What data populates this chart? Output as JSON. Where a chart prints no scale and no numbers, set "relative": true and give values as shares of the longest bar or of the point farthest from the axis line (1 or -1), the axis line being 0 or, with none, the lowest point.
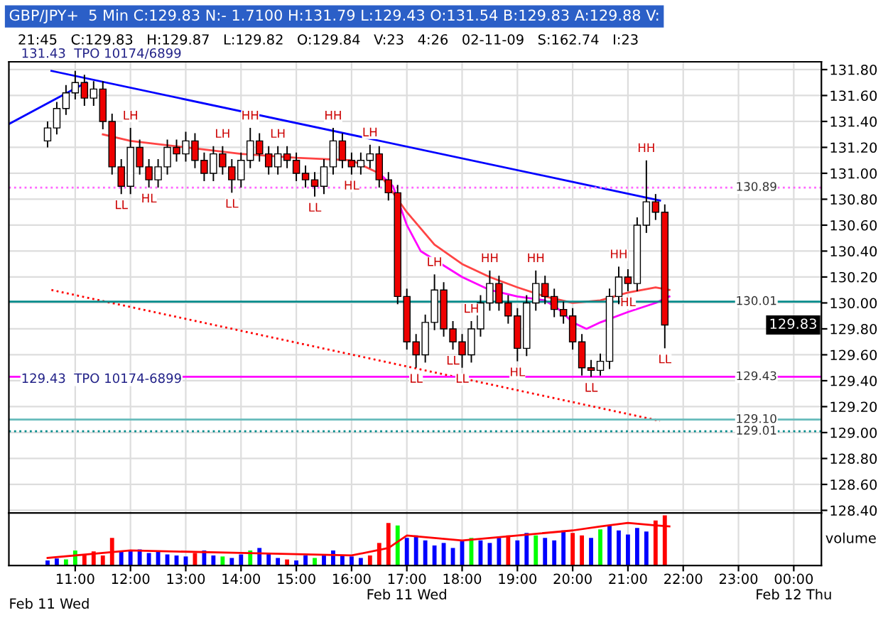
{
  "chart_data": [
    {
      "type": "candlestick",
      "title": "GBP/JPY+  5 Min C:129.83 N:- 1.7100 H:131.79 L:129.43 O:131.54 B:129.83 A:129.88 V:",
      "subtitle": "21:45   C:129.83   H:129.87   L:129.82   O:129.84   V:23   4:26   02-11-09   S:162.74   I:23",
      "x": [
        10.5,
        10.6667,
        10.8333,
        11.0,
        11.1667,
        11.3333,
        11.5,
        11.6667,
        11.8333,
        12.0,
        12.1667,
        12.3333,
        12.5,
        12.6667,
        12.8333,
        13.0,
        13.1667,
        13.3333,
        13.5,
        13.6667,
        13.8333,
        14.0,
        14.1667,
        14.3333,
        14.5,
        14.6667,
        14.8333,
        15.0,
        15.1667,
        15.3333,
        15.5,
        15.6667,
        15.8333,
        16.0,
        16.1667,
        16.3333,
        16.5,
        16.6667,
        16.8333,
        17.0,
        17.1667,
        17.3333,
        17.5,
        17.6667,
        17.8333,
        18.0,
        18.1667,
        18.3333,
        18.5,
        18.6667,
        18.8333,
        19.0,
        19.1667,
        19.3333,
        19.5,
        19.6667,
        19.8333,
        20.0,
        20.1667,
        20.3333,
        20.5,
        20.6667,
        20.8333,
        21.0,
        21.1667,
        21.3333,
        21.5,
        21.6667
      ],
      "ohlc": [
        [
          131.25,
          131.4,
          131.2,
          131.35
        ],
        [
          131.35,
          131.55,
          131.3,
          131.5
        ],
        [
          131.5,
          131.68,
          131.45,
          131.62
        ],
        [
          131.62,
          131.79,
          131.57,
          131.7
        ],
        [
          131.7,
          131.76,
          131.52,
          131.58
        ],
        [
          131.58,
          131.71,
          131.52,
          131.65
        ],
        [
          131.65,
          131.71,
          131.34,
          131.4
        ],
        [
          131.4,
          131.46,
          130.99,
          131.05
        ],
        [
          131.05,
          131.11,
          130.84,
          130.9
        ],
        [
          130.9,
          131.35,
          130.84,
          131.2
        ],
        [
          131.2,
          131.26,
          130.99,
          131.05
        ],
        [
          131.05,
          131.11,
          130.89,
          130.95
        ],
        [
          130.95,
          131.11,
          130.89,
          131.05
        ],
        [
          131.05,
          131.26,
          130.99,
          131.2
        ],
        [
          131.2,
          131.26,
          131.09,
          131.15
        ],
        [
          131.15,
          131.32,
          131.09,
          131.25
        ],
        [
          131.25,
          131.31,
          131.04,
          131.1
        ],
        [
          131.1,
          131.16,
          130.94,
          131.0
        ],
        [
          131.0,
          131.21,
          130.94,
          131.15
        ],
        [
          131.15,
          131.21,
          130.99,
          131.05
        ],
        [
          131.05,
          131.11,
          130.85,
          130.95
        ],
        [
          130.95,
          131.16,
          130.89,
          131.1
        ],
        [
          131.1,
          131.35,
          131.04,
          131.25
        ],
        [
          131.25,
          131.31,
          131.09,
          131.15
        ],
        [
          131.15,
          131.21,
          130.99,
          131.05
        ],
        [
          131.05,
          131.21,
          130.99,
          131.15
        ],
        [
          131.15,
          131.21,
          131.04,
          131.1
        ],
        [
          131.1,
          131.16,
          130.94,
          131.0
        ],
        [
          131.0,
          131.06,
          130.89,
          130.95
        ],
        [
          130.95,
          131.01,
          130.82,
          130.9
        ],
        [
          130.9,
          131.11,
          130.84,
          131.05
        ],
        [
          131.05,
          131.35,
          130.99,
          131.25
        ],
        [
          131.25,
          131.31,
          131.04,
          131.1
        ],
        [
          131.1,
          131.16,
          130.99,
          131.05
        ],
        [
          131.05,
          131.16,
          130.99,
          131.1
        ],
        [
          131.1,
          131.22,
          131.04,
          131.15
        ],
        [
          131.15,
          131.21,
          130.89,
          130.95
        ],
        [
          130.95,
          131.01,
          130.79,
          130.85
        ],
        [
          130.85,
          130.91,
          129.99,
          130.05
        ],
        [
          130.05,
          130.11,
          129.64,
          129.7
        ],
        [
          129.7,
          129.76,
          129.5,
          129.6
        ],
        [
          129.6,
          129.91,
          129.54,
          129.85
        ],
        [
          129.85,
          130.22,
          129.79,
          130.1
        ],
        [
          130.1,
          130.16,
          129.74,
          129.8
        ],
        [
          129.8,
          129.86,
          129.64,
          129.7
        ],
        [
          129.7,
          129.76,
          129.5,
          129.6
        ],
        [
          129.6,
          129.86,
          129.54,
          129.8
        ],
        [
          129.8,
          130.06,
          129.74,
          130.0
        ],
        [
          130.0,
          130.25,
          129.94,
          130.15
        ],
        [
          130.15,
          130.21,
          129.94,
          130.0
        ],
        [
          130.0,
          130.06,
          129.84,
          129.9
        ],
        [
          129.9,
          129.96,
          129.55,
          129.65
        ],
        [
          129.65,
          130.06,
          129.59,
          130.0
        ],
        [
          130.0,
          130.25,
          129.94,
          130.15
        ],
        [
          130.15,
          130.21,
          129.99,
          130.05
        ],
        [
          130.05,
          130.11,
          129.89,
          129.95
        ],
        [
          129.95,
          130.01,
          129.84,
          129.9
        ],
        [
          129.9,
          129.96,
          129.64,
          129.7
        ],
        [
          129.7,
          129.76,
          129.44,
          129.5
        ],
        [
          129.5,
          129.56,
          129.43,
          129.48
        ],
        [
          129.48,
          129.61,
          129.44,
          129.55
        ],
        [
          129.55,
          130.11,
          129.49,
          130.05
        ],
        [
          130.05,
          130.28,
          129.99,
          130.2
        ],
        [
          130.2,
          130.26,
          130.09,
          130.15
        ],
        [
          130.15,
          130.66,
          130.09,
          130.6
        ],
        [
          130.6,
          131.1,
          130.54,
          130.78
        ],
        [
          130.78,
          130.84,
          130.64,
          130.7
        ],
        [
          130.7,
          130.76,
          129.65,
          129.83
        ]
      ],
      "series": [
        {
          "type": "line",
          "color": "#0000ff",
          "x": [
            9.8,
            11.2
          ],
          "values": [
            131.38,
            131.7
          ]
        },
        {
          "type": "line",
          "color": "#0000ff",
          "x": [
            10.57,
            21.58
          ],
          "values": [
            131.79,
            130.79
          ]
        },
        {
          "type": "line",
          "color": "#ff0000",
          "line_style": "dotted",
          "x": [
            10.57,
            21.58
          ],
          "values": [
            130.1,
            129.09
          ]
        },
        {
          "type": "line",
          "color": "#ff4444",
          "x": [
            11.5,
            12,
            13,
            14,
            15,
            16,
            16.5,
            17,
            17.5,
            18,
            18.5,
            19,
            19.5,
            20,
            20.5,
            21,
            21.5,
            21.75
          ],
          "values": [
            131.3,
            131.25,
            131.2,
            131.15,
            131.12,
            131.1,
            131.0,
            130.7,
            130.45,
            130.3,
            130.2,
            130.12,
            130.05,
            130.0,
            130.02,
            130.08,
            130.12,
            130.1
          ]
        },
        {
          "type": "line",
          "color": "#ff00ff",
          "x": [
            16.5,
            16.75,
            17,
            17.25,
            18,
            18.5,
            19,
            19.5,
            19.75,
            20,
            20.25,
            20.5,
            21,
            21.5,
            21.75
          ],
          "values": [
            131.0,
            130.9,
            130.6,
            130.4,
            130.2,
            130.1,
            130.05,
            130.02,
            129.95,
            129.85,
            129.8,
            129.85,
            129.93,
            130.0,
            130.05
          ]
        }
      ],
      "ref_lines": [
        {
          "axis": "y",
          "value": 130.89,
          "label": "130.89",
          "color": "#ff66ff",
          "line_style": "dotted"
        },
        {
          "axis": "y",
          "value": 129.43,
          "label": "129.43",
          "color": "#ff00ff",
          "line_style": "solid"
        },
        {
          "axis": "y",
          "value": 130.01,
          "label": "130.01",
          "color": "#008b8b",
          "line_style": "solid"
        },
        {
          "axis": "y",
          "value": 129.1,
          "label": "129.10",
          "color": "#66bbbb",
          "line_style": "solid"
        },
        {
          "axis": "y",
          "value": 129.01,
          "label": "129.01",
          "color": "#008b8b",
          "line_style": "dotted"
        }
      ],
      "annotations": [
        {
          "text": "LL",
          "x": 11.8333,
          "y": 130.84
        },
        {
          "text": "LH",
          "x": 12.0,
          "y": 131.35
        },
        {
          "text": "HL",
          "x": 12.3333,
          "y": 130.89
        },
        {
          "text": "LH",
          "x": 13.6667,
          "y": 131.21
        },
        {
          "text": "LL",
          "x": 13.8333,
          "y": 130.85
        },
        {
          "text": "HH",
          "x": 14.1667,
          "y": 131.35
        },
        {
          "text": "LH",
          "x": 14.6667,
          "y": 131.21
        },
        {
          "text": "LL",
          "x": 15.3333,
          "y": 130.82
        },
        {
          "text": "HH",
          "x": 15.6667,
          "y": 131.35
        },
        {
          "text": "HL",
          "x": 16.0,
          "y": 130.99
        },
        {
          "text": "LH",
          "x": 16.3333,
          "y": 131.22
        },
        {
          "text": "LL",
          "x": 17.1667,
          "y": 129.5
        },
        {
          "text": "LH",
          "x": 17.5,
          "y": 130.22
        },
        {
          "text": "LL",
          "x": 17.8333,
          "y": 129.64
        },
        {
          "text": "LL",
          "x": 18.0,
          "y": 129.5
        },
        {
          "text": "LH",
          "x": 18.1667,
          "y": 129.86
        },
        {
          "text": "HH",
          "x": 18.5,
          "y": 130.25
        },
        {
          "text": "HL",
          "x": 19.0,
          "y": 129.55
        },
        {
          "text": "HH",
          "x": 19.3333,
          "y": 130.25
        },
        {
          "text": "LL",
          "x": 20.3333,
          "y": 129.43
        },
        {
          "text": "HH",
          "x": 20.8333,
          "y": 130.28
        },
        {
          "text": "HL",
          "x": 21.0,
          "y": 130.09
        },
        {
          "text": "HH",
          "x": 21.3333,
          "y": 131.1
        },
        {
          "text": "LL",
          "x": 21.6667,
          "y": 129.65
        },
        "131.43  TPO 10174/6899",
        "129.43  TPO 10174-6899",
        "129.83"
      ],
      "xlim": [
        9.8,
        24.5
      ],
      "ylim": [
        128.38,
        131.86
      ],
      "yticks": [
        {
          "value": 128.4,
          "label": "128.40"
        },
        {
          "value": 128.6,
          "label": "128.60"
        },
        {
          "value": 128.8,
          "label": "128.80"
        },
        {
          "value": 129.0,
          "label": "129.00"
        },
        {
          "value": 129.2,
          "label": "129.20"
        },
        {
          "value": 129.4,
          "label": "129.40"
        },
        {
          "value": 129.6,
          "label": "129.60"
        },
        {
          "value": 129.8,
          "label": "129.80"
        },
        {
          "value": 130.0,
          "label": "130.00"
        },
        {
          "value": 130.2,
          "label": "130.20"
        },
        {
          "value": 130.4,
          "label": "130.40"
        },
        {
          "value": 130.6,
          "label": "130.60"
        },
        {
          "value": 130.8,
          "label": "130.80"
        },
        {
          "value": 131.0,
          "label": "131.00"
        },
        {
          "value": 131.2,
          "label": "131.20"
        },
        {
          "value": 131.4,
          "label": "131.40"
        },
        {
          "value": 131.6,
          "label": "131.60"
        },
        {
          "value": 131.8,
          "label": "131.80"
        }
      ],
      "xticks": [
        11,
        12,
        13,
        14,
        15,
        16,
        17,
        18,
        19,
        20,
        21,
        22,
        23,
        24
      ],
      "tick_labels": "y",
      "grid": true
    },
    {
      "type": "bar",
      "relative": true,
      "ylabel": "volume",
      "x": [
        10.5,
        10.6667,
        10.8333,
        11.0,
        11.1667,
        11.3333,
        11.5,
        11.6667,
        11.8333,
        12.0,
        12.1667,
        12.3333,
        12.5,
        12.6667,
        12.8333,
        13.0,
        13.1667,
        13.3333,
        13.5,
        13.6667,
        13.8333,
        14.0,
        14.1667,
        14.3333,
        14.5,
        14.6667,
        14.8333,
        15.0,
        15.1667,
        15.3333,
        15.5,
        15.6667,
        15.8333,
        16.0,
        16.1667,
        16.3333,
        16.5,
        16.6667,
        16.8333,
        17.0,
        17.1667,
        17.3333,
        17.5,
        17.6667,
        17.8333,
        18.0,
        18.1667,
        18.3333,
        18.5,
        18.6667,
        18.8333,
        19.0,
        19.1667,
        19.3333,
        19.5,
        19.6667,
        19.8333,
        20.0,
        20.1667,
        20.3333,
        20.5,
        20.6667,
        20.8333,
        21.0,
        21.1667,
        21.3333,
        21.5,
        21.6667
      ],
      "series": [
        {
          "type": "bar",
          "values": [
            0.1,
            0.14,
            0.12,
            0.3,
            0.22,
            0.28,
            0.2,
            0.55,
            0.28,
            0.3,
            0.32,
            0.25,
            0.28,
            0.22,
            0.2,
            0.18,
            0.25,
            0.3,
            0.2,
            0.18,
            0.15,
            0.22,
            0.3,
            0.35,
            0.25,
            0.15,
            0.12,
            0.1,
            0.2,
            0.15,
            0.22,
            0.3,
            0.2,
            0.18,
            0.15,
            0.2,
            0.45,
            0.85,
            0.8,
            0.55,
            0.6,
            0.5,
            0.4,
            0.45,
            0.35,
            0.5,
            0.55,
            0.5,
            0.45,
            0.55,
            0.6,
            0.5,
            0.65,
            0.6,
            0.55,
            0.5,
            0.7,
            0.65,
            0.6,
            0.55,
            0.72,
            0.8,
            0.7,
            0.62,
            0.75,
            0.68,
            0.9,
            1.0
          ],
          "colors": [
            "#0000ff",
            "#0000ff",
            "#00ff00",
            "#00ff00",
            "#ff0000",
            "#ff0000",
            "#ff0000",
            "#ff0000",
            "#0000ff",
            "#0000ff",
            "#0000ff",
            "#0000ff",
            "#0000ff",
            "#0000ff",
            "#0000ff",
            "#0000ff",
            "#ff0000",
            "#0000ff",
            "#0000ff",
            "#00ff00",
            "#0000ff",
            "#0000ff",
            "#00ff00",
            "#0000ff",
            "#0000ff",
            "#0000ff",
            "#ff0000",
            "#0000ff",
            "#0000ff",
            "#00ff00",
            "#0000ff",
            "#0000ff",
            "#0000ff",
            "#0000ff",
            "#0000ff",
            "#ff0000",
            "#ff0000",
            "#ff0000",
            "#00ff00",
            "#0000ff",
            "#0000ff",
            "#0000ff",
            "#0000ff",
            "#0000ff",
            "#0000ff",
            "#0000ff",
            "#00ff00",
            "#0000ff",
            "#0000ff",
            "#0000ff",
            "#ff0000",
            "#0000ff",
            "#0000ff",
            "#00ff00",
            "#0000ff",
            "#0000ff",
            "#0000ff",
            "#ff0000",
            "#ff0000",
            "#0000ff",
            "#00ff00",
            "#0000ff",
            "#0000ff",
            "#0000ff",
            "#0000ff",
            "#0000ff",
            "#ff0000",
            "#ff0000"
          ]
        },
        {
          "type": "line",
          "color": "#ff0000",
          "x": [
            10.5,
            12,
            14,
            16,
            16.67,
            17.0,
            17.5,
            18,
            19,
            20,
            20.5,
            21,
            21.5,
            21.75
          ],
          "values": [
            0.15,
            0.3,
            0.25,
            0.2,
            0.35,
            0.6,
            0.55,
            0.5,
            0.6,
            0.7,
            0.78,
            0.85,
            0.8,
            0.78
          ]
        }
      ],
      "xlim": [
        9.8,
        24.5
      ],
      "annotations": [
        "Feb 11 Wed"
      ],
      "xticks": [
        {
          "value": 11,
          "label": "11:00"
        },
        {
          "value": 12,
          "label": "12:00"
        },
        {
          "value": 13,
          "label": "13:00"
        },
        {
          "value": 14,
          "label": "14:00"
        },
        {
          "value": 15,
          "label": "15:00"
        },
        {
          "value": 16,
          "label": "16:00"
        },
        {
          "value": 17,
          "label": "17:00\nFeb 11 Wed"
        },
        {
          "value": 18,
          "label": "18:00"
        },
        {
          "value": 19,
          "label": "19:00"
        },
        {
          "value": 20,
          "label": "20:00"
        },
        {
          "value": 21,
          "label": "21:00"
        },
        {
          "value": 22,
          "label": "22:00"
        },
        {
          "value": 23,
          "label": "23:00"
        },
        {
          "value": 24,
          "label": "00:00\nFeb 12 Thu"
        }
      ],
      "grid": "x"
    }
  ]
}
